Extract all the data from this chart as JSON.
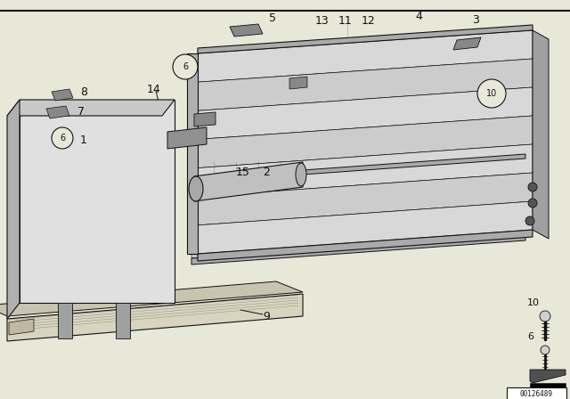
{
  "bg_color": "#e8e8d8",
  "line_color": "#111111",
  "diagram_id": "00126489",
  "white_color": "#ffffff",
  "gray_light": "#d4d4d4",
  "gray_mid": "#aaaaaa",
  "gray_dark": "#888888"
}
